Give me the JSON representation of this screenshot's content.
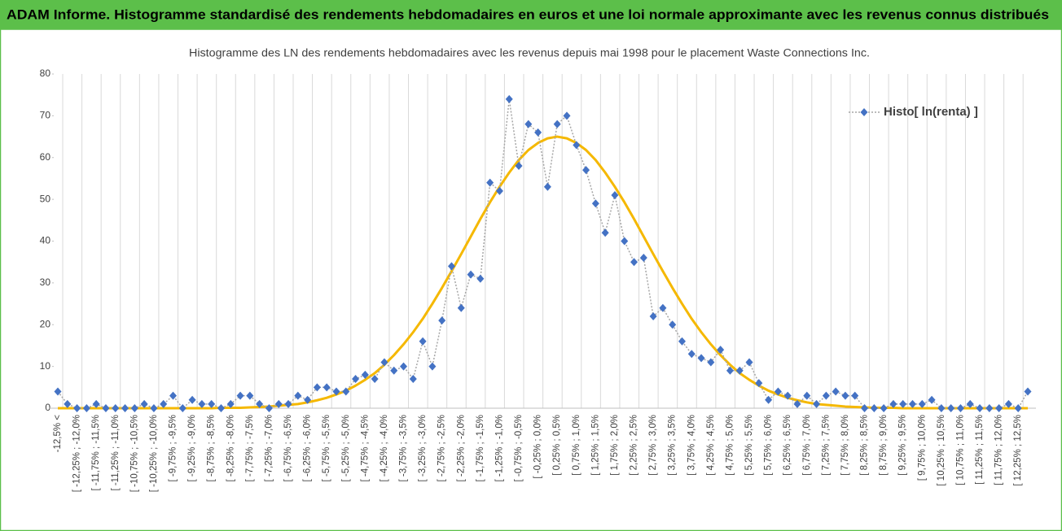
{
  "chart_data": {
    "type": "line",
    "header": "ADAM Informe. Histogramme standardisé des rendements hebdomadaires en euros et une loi normale approximante avec les revenus connus distribués",
    "title": "Histogramme des LN des rendements hebdomadaires avec les revenus depuis mai 1998 pour le placement Waste Connections Inc.",
    "categories": [
      "-12,5% <",
      null,
      "[ -12,25% ; -12,0%",
      null,
      "[ -11,75% ; -11,5%",
      null,
      "[ -11,25% ; -11,0%",
      null,
      "[ -10,75% ; -10,5%",
      null,
      "[ -10,25% ; -10,0%",
      null,
      "[ -9,75% ; -9,5%",
      null,
      "[ -9,25% ; -9,0%",
      null,
      "[ -8,75% ; -8,5%",
      null,
      "[ -8,25% ; -8,0%",
      null,
      "[ -7,75% ; -7,5%",
      null,
      "[ -7,25% ; -7,0%",
      null,
      "[ -6,75% ; -6,5%",
      null,
      "[ -6,25% ; -6,0%",
      null,
      "[ -5,75% ; -5,5%",
      null,
      "[ -5,25% ; -5,0%",
      null,
      "[ -4,75% ; -4,5%",
      null,
      "[ -4,25% ; -4,0%",
      null,
      "[ -3,75% ; -3,5%",
      null,
      "[ -3,25% ; -3,0%",
      null,
      "[ -2,75% ; -2,5%",
      null,
      "[ -2,25% ; -2,0%",
      null,
      "[ -1,75% ; -1,5%",
      null,
      "[ -1,25% ; -1,0%",
      null,
      "[ -0,75% ; -0,5%",
      null,
      "[ -0,25% ; 0,0%",
      null,
      "[ 0,25% ; 0,5%",
      null,
      "[ 0,75% ; 1,0%",
      null,
      "[ 1,25% ; 1,5%",
      null,
      "[ 1,75% ; 2,0%",
      null,
      "[ 2,25% ; 2,5%",
      null,
      "[ 2,75% ; 3,0%",
      null,
      "[ 3,25% ; 3,5%",
      null,
      "[ 3,75% ; 4,0%",
      null,
      "[ 4,25% ; 4,5%",
      null,
      "[ 4,75% ; 5,0%",
      null,
      "[ 5,25% ; 5,5%",
      null,
      "[ 5,75% ; 6,0%",
      null,
      "[ 6,25% ; 6,5%",
      null,
      "[ 6,75% ; 7,0%",
      null,
      "[ 7,25% ; 7,5%",
      null,
      "[ 7,75% ; 8,0%",
      null,
      "[ 8,25% ; 8,5%",
      null,
      "[ 8,75% ; 9,0%",
      null,
      "[ 9,25% ; 9,5%",
      null,
      "[ 9,75% ; 10,0%",
      null,
      "[ 10,25% ; 10,5%",
      null,
      "[ 10,75% ; 11,0%",
      null,
      "[ 11,25% ; 11,5%",
      null,
      "[ 11,75% ; 12,0%",
      null,
      "[ 12,25% ; 12,5%",
      null
    ],
    "series": [
      {
        "name": "Histo[ ln(renta) ]",
        "color": "#4472c4",
        "line_color": "#a6a6a6",
        "values": [
          4,
          1,
          0,
          0,
          1,
          0,
          0,
          0,
          0,
          1,
          0,
          1,
          3,
          0,
          2,
          1,
          1,
          0,
          1,
          3,
          3,
          1,
          0,
          1,
          1,
          3,
          2,
          5,
          5,
          4,
          4,
          7,
          8,
          7,
          11,
          9,
          10,
          7,
          16,
          10,
          21,
          34,
          24,
          32,
          31,
          54,
          52,
          74,
          58,
          68,
          66,
          53,
          68,
          70,
          63,
          57,
          49,
          42,
          51,
          40,
          35,
          36,
          22,
          24,
          20,
          16,
          13,
          12,
          11,
          14,
          9,
          9,
          11,
          6,
          2,
          4,
          3,
          1,
          3,
          1,
          3,
          4,
          3,
          3,
          0,
          0,
          0,
          1,
          1,
          1,
          1,
          2,
          0,
          0,
          0,
          1,
          0,
          0,
          0,
          1,
          0,
          4
        ]
      },
      {
        "color": "#f5b800",
        "values": [
          0,
          0,
          0,
          0,
          0,
          0,
          0,
          0,
          0,
          0,
          0,
          0,
          0,
          0,
          0,
          0,
          0,
          0.1,
          0.1,
          0.1,
          0.2,
          0.3,
          0.4,
          0.6,
          0.8,
          1.0,
          1.4,
          1.9,
          2.5,
          3.3,
          4.2,
          5.4,
          6.8,
          8.4,
          10.4,
          12.7,
          15.3,
          18.2,
          21.4,
          25.0,
          28.8,
          32.8,
          36.9,
          41.1,
          45.3,
          49.3,
          53.0,
          56.4,
          59.4,
          61.8,
          63.5,
          64.6,
          65,
          64.6,
          63.5,
          61.8,
          59.4,
          56.4,
          53.0,
          49.3,
          45.3,
          41.1,
          36.9,
          32.8,
          28.8,
          25.0,
          21.4,
          18.2,
          15.3,
          12.7,
          10.4,
          8.4,
          6.8,
          5.4,
          4.2,
          3.3,
          2.5,
          1.9,
          1.4,
          1.0,
          0.8,
          0.6,
          0.4,
          0.3,
          0.2,
          0.1,
          0.1,
          0.1,
          0,
          0,
          0,
          0,
          0,
          0,
          0,
          0,
          0,
          0,
          0,
          0,
          0,
          0
        ]
      }
    ],
    "ylim": [
      0,
      80
    ],
    "yticks": [
      0,
      10,
      20,
      30,
      40,
      50,
      60,
      70,
      80
    ],
    "grid": true,
    "legend": "upper right"
  }
}
